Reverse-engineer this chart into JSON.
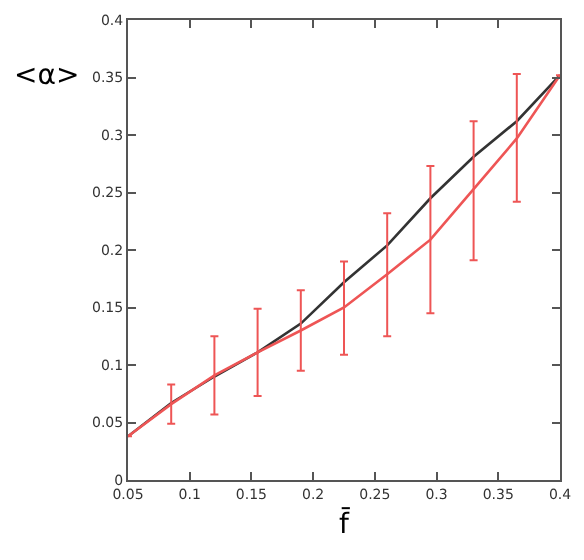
{
  "chart_data": {
    "type": "line",
    "xlabel": "f̄",
    "ylabel": "<α>",
    "x": [
      0.05,
      0.085,
      0.12,
      0.155,
      0.19,
      0.225,
      0.26,
      0.295,
      0.33,
      0.365,
      0.4
    ],
    "series": [
      {
        "color": "#333333",
        "values": [
          0.038,
          0.067,
          0.09,
          0.111,
          0.136,
          0.172,
          0.204,
          0.245,
          0.281,
          0.312,
          0.352
        ]
      },
      {
        "color": "#ee5555",
        "values": [
          0.038,
          0.066,
          0.091,
          0.111,
          0.13,
          0.15,
          0.179,
          0.209,
          0.253,
          0.297,
          0.352
        ],
        "errors": [
          null,
          [
            0.049,
            0.083
          ],
          [
            0.057,
            0.125
          ],
          [
            0.073,
            0.149
          ],
          [
            0.095,
            0.165
          ],
          [
            0.109,
            0.19
          ],
          [
            0.125,
            0.232
          ],
          [
            0.145,
            0.273
          ],
          [
            0.191,
            0.312
          ],
          [
            0.242,
            0.353
          ],
          null
        ]
      }
    ],
    "xlim": [
      0.05,
      0.4
    ],
    "xticks": [
      0.05,
      0.1,
      0.15,
      0.2,
      0.25,
      0.3,
      0.35,
      0.4
    ],
    "ylim": [
      0,
      0.4
    ],
    "yticks": [
      0,
      0.05,
      0.1,
      0.15,
      0.2,
      0.25,
      0.3,
      0.35,
      0.4
    ],
    "marker": "none",
    "line_style": "solid"
  }
}
